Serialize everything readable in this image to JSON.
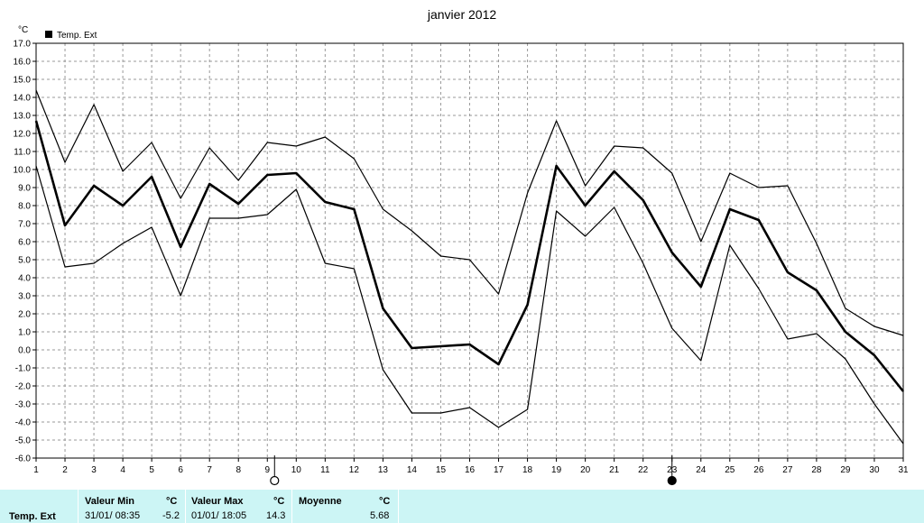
{
  "chart_data": {
    "type": "line",
    "title": "janvier 2012",
    "ylabel": "°C",
    "legend": [
      "Temp. Ext"
    ],
    "legend_position": "top-left",
    "grid": true,
    "ylim": [
      -6.0,
      17.0
    ],
    "y_ticks": [
      "17.0",
      "16.0",
      "15.0",
      "14.0",
      "13.0",
      "12.0",
      "11.0",
      "10.0",
      "9.0",
      "8.0",
      "7.0",
      "6.0",
      "5.0",
      "4.0",
      "3.0",
      "2.0",
      "1.0",
      "0.0",
      "-1.0",
      "-2.0",
      "-3.0",
      "-4.0",
      "-5.0",
      "-6.0"
    ],
    "x": [
      1,
      2,
      3,
      4,
      5,
      6,
      7,
      8,
      9,
      10,
      11,
      12,
      13,
      14,
      15,
      16,
      17,
      18,
      19,
      20,
      21,
      22,
      23,
      24,
      25,
      26,
      27,
      28,
      29,
      30,
      31
    ],
    "series": [
      {
        "name": "Temp. Ext",
        "role": "max",
        "values": [
          14.4,
          10.4,
          13.6,
          9.9,
          11.5,
          8.4,
          11.2,
          9.4,
          11.5,
          11.3,
          11.8,
          10.6,
          7.8,
          6.6,
          5.2,
          5.0,
          3.1,
          8.7,
          12.7,
          9.1,
          11.3,
          11.2,
          9.8,
          6.0,
          9.8,
          9.0,
          9.1,
          5.9,
          2.3,
          1.3,
          0.8
        ]
      },
      {
        "name": "Temp. Ext",
        "role": "mean",
        "values": [
          12.7,
          6.9,
          9.1,
          8.0,
          9.6,
          5.7,
          9.2,
          8.1,
          9.7,
          9.8,
          8.2,
          7.8,
          2.3,
          0.1,
          0.2,
          0.3,
          -0.8,
          2.5,
          10.2,
          8.0,
          9.9,
          8.3,
          5.4,
          3.5,
          7.8,
          7.2,
          4.3,
          3.3,
          1.0,
          -0.3,
          -2.3
        ]
      },
      {
        "name": "Temp. Ext",
        "role": "min",
        "values": [
          10.2,
          4.6,
          4.8,
          5.9,
          6.8,
          3.0,
          7.3,
          7.3,
          7.5,
          8.9,
          4.8,
          4.5,
          -1.1,
          -3.5,
          -3.5,
          -3.2,
          -4.3,
          -3.3,
          7.7,
          6.3,
          7.9,
          4.8,
          1.2,
          -0.6,
          5.8,
          3.4,
          0.6,
          0.9,
          -0.5,
          -3.0,
          -5.2
        ]
      }
    ],
    "markers": [
      {
        "type": "open-circle",
        "x": 9.25
      },
      {
        "type": "filled-circle",
        "x": 23
      }
    ]
  },
  "summary": {
    "series_label": "Temp. Ext",
    "min_header": "Valeur Min",
    "min_unit": "°C",
    "min_time": "31/01/  08:35",
    "min_value": "-5.2",
    "max_header": "Valeur Max",
    "max_unit": "°C",
    "max_time": "01/01/  18:05",
    "max_value": "14.3",
    "mean_header": "Moyenne",
    "mean_unit": "°C",
    "mean_value": "5.68"
  }
}
